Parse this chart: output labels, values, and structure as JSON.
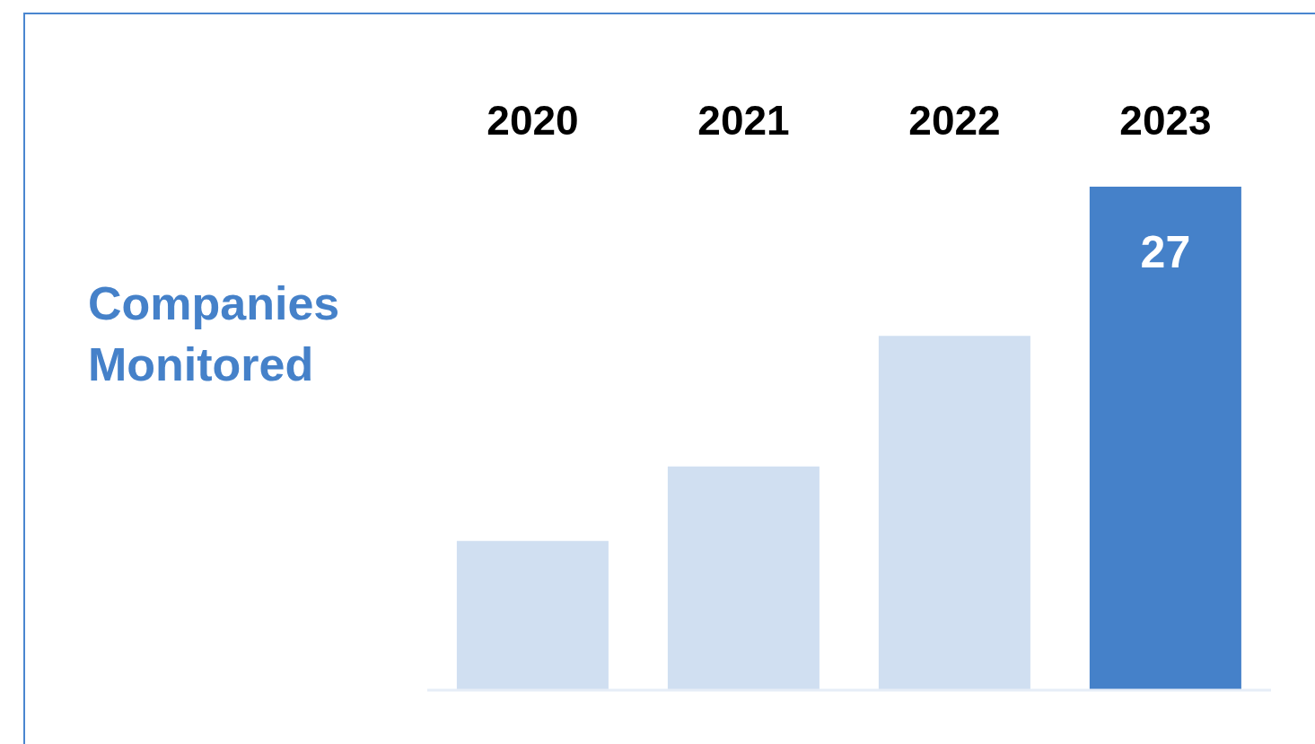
{
  "chart_data": {
    "type": "bar",
    "title": "Companies Monitored",
    "categories": [
      "2020",
      "2021",
      "2022",
      "2023"
    ],
    "values": [
      8,
      12,
      19,
      27
    ],
    "colors": [
      "#d0dff1",
      "#d0dff1",
      "#d0dff1",
      "#4581c9"
    ],
    "value_labels": [
      null,
      null,
      null,
      "27"
    ],
    "grid": false,
    "legend": false
  }
}
